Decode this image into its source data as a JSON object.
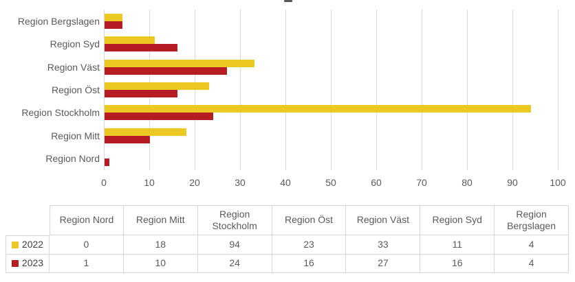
{
  "colors": {
    "series_2022": "#EBC822",
    "series_2023": "#B51D23",
    "gridline": "#D9D9D9",
    "axis_text": "#595959",
    "table_border": "#D6D6D6",
    "legend_text": "#3F3F3F"
  },
  "chart_data": {
    "type": "bar",
    "orientation": "horizontal",
    "title": "",
    "xlabel": "",
    "ylabel": "",
    "grid": true,
    "xlim": [
      0,
      100
    ],
    "x_ticks": [
      0,
      10,
      20,
      30,
      40,
      50,
      60,
      70,
      80,
      90,
      100
    ],
    "categories_top_to_bottom": [
      "Region Bergslagen",
      "Region Syd",
      "Region Väst",
      "Region Öst",
      "Region Stockholm",
      "Region Mitt",
      "Region Nord"
    ],
    "series": [
      {
        "name": "2022",
        "color": "#EBC822",
        "values": [
          4,
          11,
          33,
          23,
          94,
          18,
          0
        ]
      },
      {
        "name": "2023",
        "color": "#B51D23",
        "values": [
          4,
          16,
          27,
          16,
          24,
          10,
          1
        ]
      }
    ],
    "legend_position": "data-table-left"
  },
  "table": {
    "columns": [
      "Region Nord",
      "Region Mitt",
      "Region Stockholm",
      "Region Öst",
      "Region Väst",
      "Region Syd",
      "Region Bergslagen"
    ],
    "rows": [
      {
        "label": "2022",
        "swatch": "#EBC822",
        "values": [
          "0",
          "18",
          "94",
          "23",
          "33",
          "11",
          "4"
        ]
      },
      {
        "label": "2023",
        "swatch": "#B51D23",
        "values": [
          "1",
          "10",
          "24",
          "16",
          "27",
          "16",
          "4"
        ]
      }
    ]
  }
}
